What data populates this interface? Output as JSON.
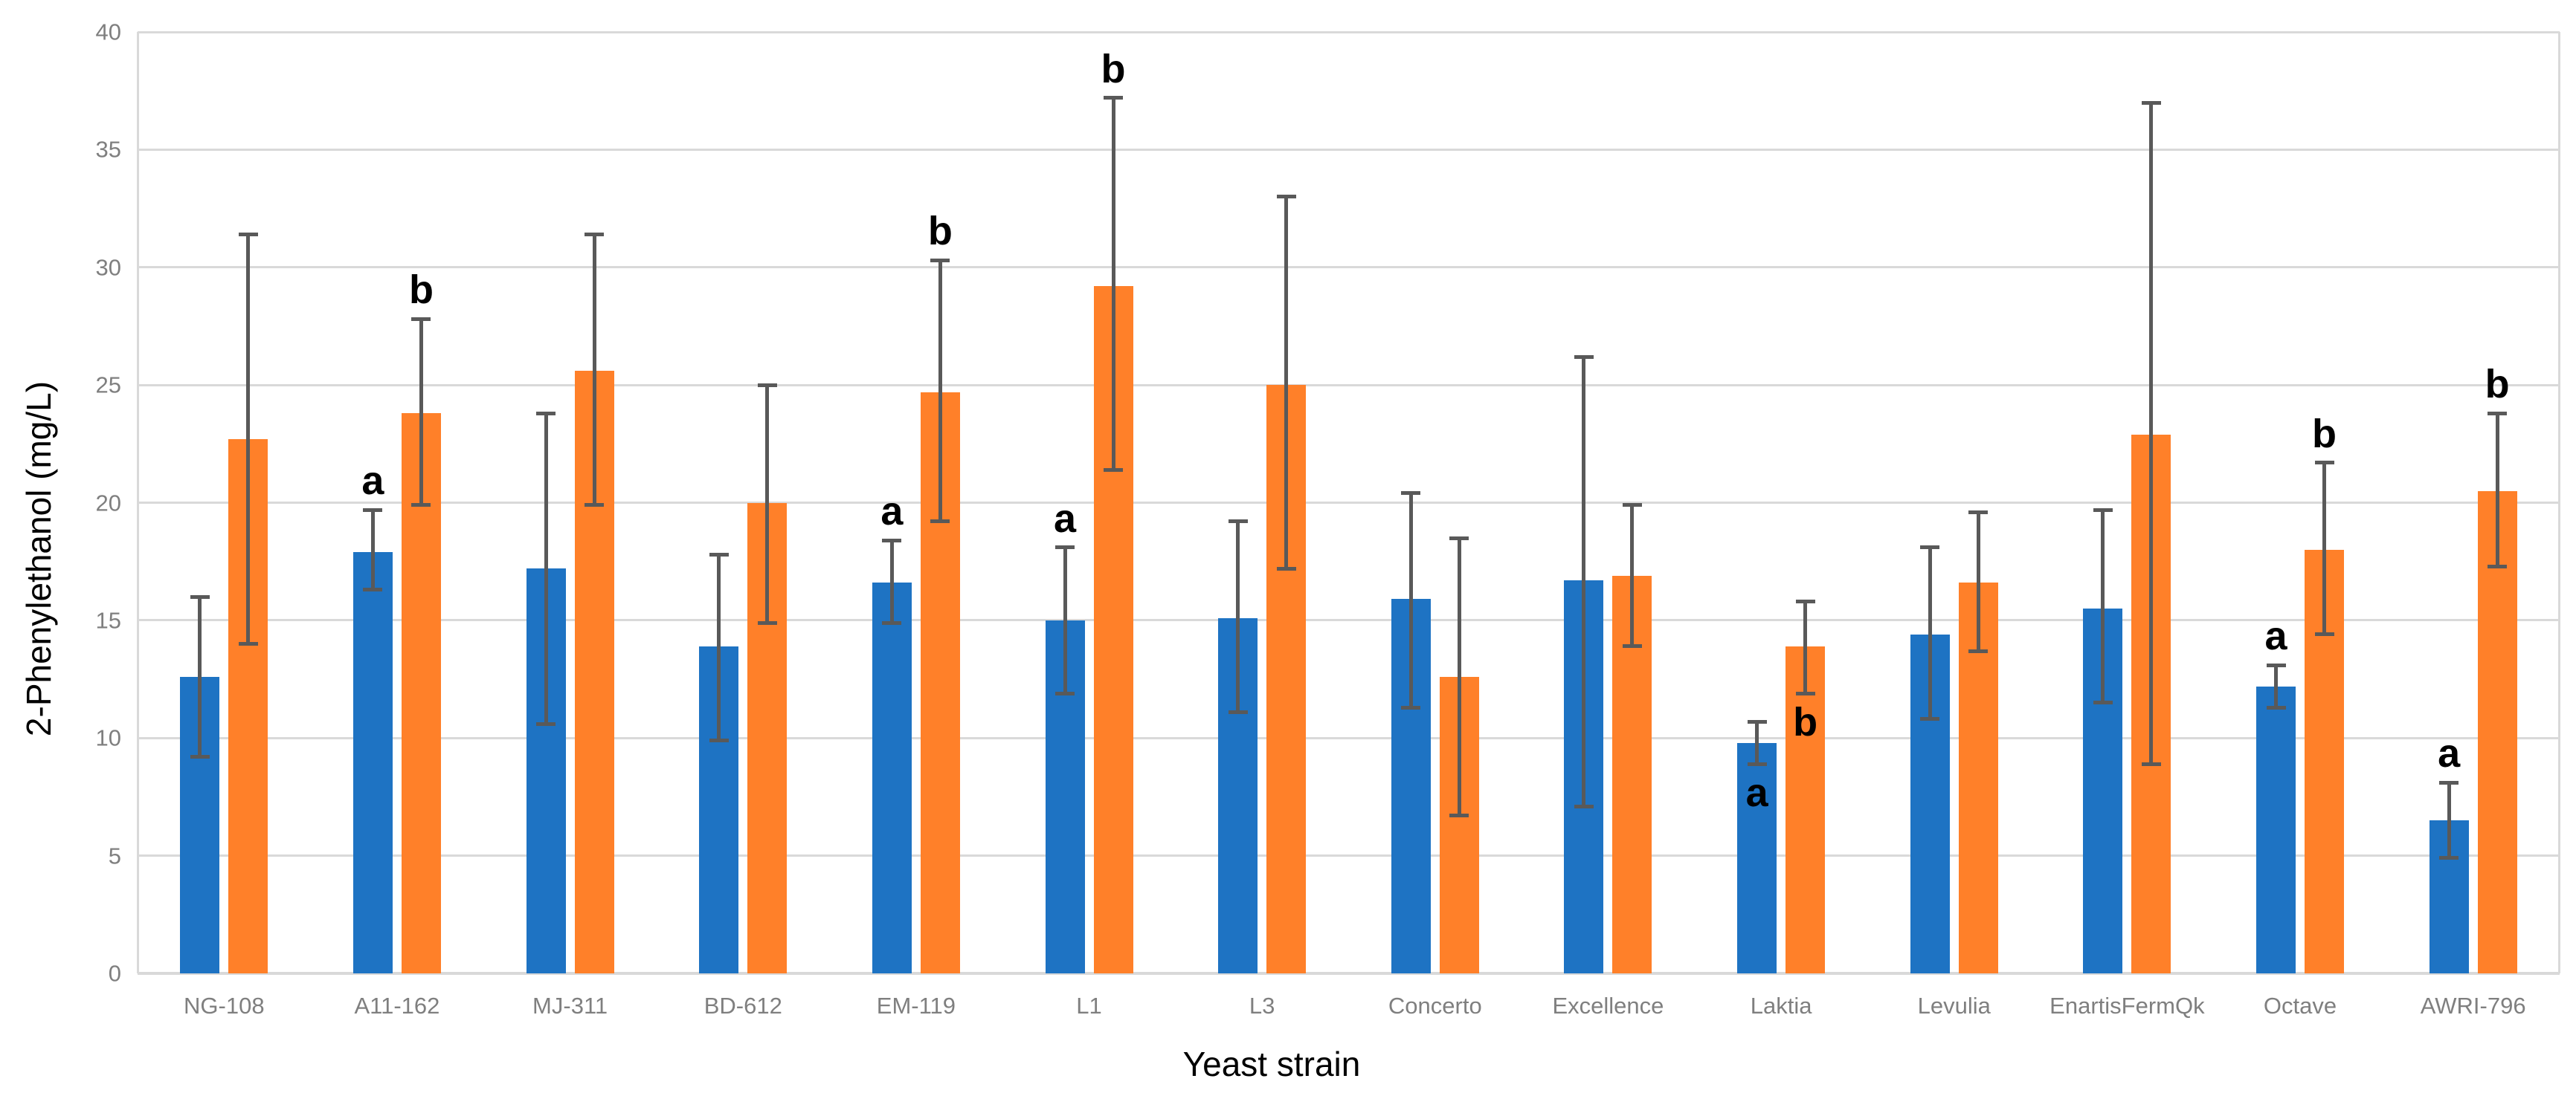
{
  "page": {
    "background": "#FFFFFF"
  },
  "chart_data": {
    "type": "bar",
    "title": "",
    "xlabel": "Yeast strain",
    "ylabel": "2-Phenylethanol (mg/L)",
    "ylim": [
      0,
      40
    ],
    "yticks": [
      0,
      5,
      10,
      15,
      20,
      25,
      30,
      35,
      40
    ],
    "grid": "horizontal",
    "legend": "none",
    "error_bars": true,
    "categories": [
      "NG-108",
      "A11-162",
      "MJ-311",
      "BD-612",
      "EM-119",
      "L1",
      "L3",
      "Concerto",
      "Excellence",
      "Laktia",
      "Levulia",
      "EnartisFermQk",
      "Octave",
      "AWRI-796"
    ],
    "letter_positions": [
      "above",
      "above",
      "above",
      "above",
      "above",
      "above",
      "above",
      "above",
      "above",
      "below",
      "above",
      "above",
      "above",
      "above"
    ],
    "series": [
      {
        "name": "blue",
        "color": "#1E73C3",
        "values": [
          12.6,
          17.9,
          17.2,
          13.9,
          16.6,
          15.0,
          15.1,
          15.9,
          16.7,
          9.8,
          14.4,
          15.5,
          12.2,
          6.5
        ],
        "err_low": [
          9.2,
          16.3,
          10.6,
          9.9,
          14.9,
          11.9,
          11.1,
          11.3,
          7.1,
          8.9,
          10.8,
          11.5,
          11.3,
          4.9
        ],
        "err_high": [
          16.0,
          19.7,
          23.8,
          17.8,
          18.4,
          18.1,
          19.2,
          20.4,
          26.2,
          10.7,
          18.1,
          19.7,
          13.1,
          8.1
        ],
        "letters": [
          "",
          "a",
          "",
          "",
          "a",
          "a",
          "",
          "",
          "",
          "a",
          "",
          "",
          "a",
          "a"
        ]
      },
      {
        "name": "orange",
        "color": "#FF8029",
        "values": [
          22.7,
          23.8,
          25.6,
          20.0,
          24.7,
          29.2,
          25.0,
          12.6,
          16.9,
          13.9,
          16.6,
          22.9,
          18.0,
          20.5
        ],
        "err_low": [
          14.0,
          19.9,
          19.9,
          14.9,
          19.2,
          21.4,
          17.2,
          6.7,
          13.9,
          11.9,
          13.7,
          8.9,
          14.4,
          17.3
        ],
        "err_high": [
          31.4,
          27.8,
          31.4,
          25.0,
          30.3,
          37.2,
          33.0,
          18.5,
          19.9,
          15.8,
          19.6,
          37.0,
          21.7,
          23.8
        ],
        "letters": [
          "",
          "b",
          "",
          "",
          "b",
          "b",
          "",
          "",
          "",
          "b",
          "",
          "",
          "b",
          "b"
        ]
      }
    ],
    "colors": {
      "gridline": "#D9D9D9",
      "error_bar": "#595959",
      "tick_label": "#7F7F7F",
      "axis_title": "#000000",
      "sig_letter": "#000000"
    }
  }
}
